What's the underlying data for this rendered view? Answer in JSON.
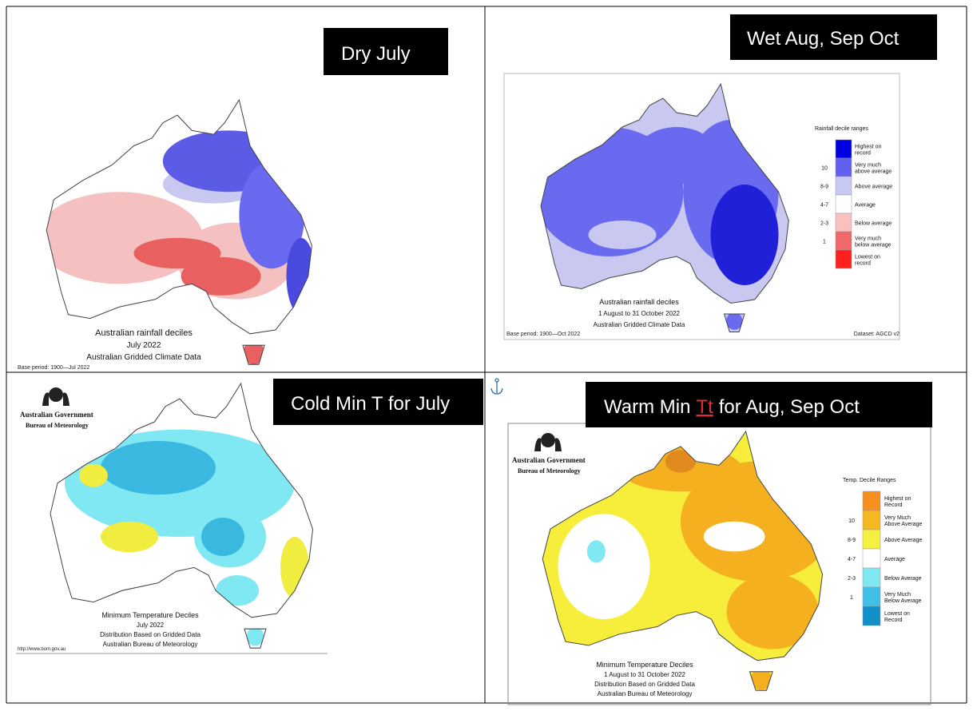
{
  "panels": [
    {
      "label": "Dry July",
      "map": {
        "caption": [
          "Australian rainfall deciles",
          "July 2022",
          "Australian Gridded Climate Data"
        ],
        "base_period": "Base period: 1900—Jul 2022"
      }
    },
    {
      "label": "Wet Aug, Sep Oct",
      "map": {
        "caption": [
          "Australian rainfall deciles",
          "1 August to 31 October 2022",
          "Australian Gridded Climate Data"
        ],
        "base_period": "Base period: 1900—Oct 2022",
        "dataset": "Dataset: AGCD v2",
        "legend": {
          "title": "Rainfall decile ranges",
          "entries": [
            {
              "lines": [
                "Highest on",
                "record"
              ],
              "color": "#0000e0"
            },
            {
              "range": "10",
              "lines": [
                "Very much",
                "above average"
              ],
              "color": "#6060f0"
            },
            {
              "range": "8-9",
              "lines": [
                "Above average"
              ],
              "color": "#c8c8f4"
            },
            {
              "range": "4-7",
              "lines": [
                "Average"
              ],
              "color": "#ffffff"
            },
            {
              "range": "2-3",
              "lines": [
                "Below average"
              ],
              "color": "#f8c0c0"
            },
            {
              "range": "1",
              "lines": [
                "Very much",
                "below average"
              ],
              "color": "#f06868"
            },
            {
              "lines": [
                "Lowest on",
                "record"
              ],
              "color": "#ff2020"
            }
          ]
        }
      }
    },
    {
      "label": "Cold Min T for July",
      "map": {
        "logo": [
          "Australian Government",
          "Bureau of Meteorology"
        ],
        "caption": [
          "Minimum Temperature Deciles",
          "July 2022",
          "Distribution Based on Gridded Data",
          "Australian Bureau of Meteorology"
        ],
        "url": "http://www.bom.gov.au"
      }
    },
    {
      "label_parts": [
        "Warm Min",
        "Tt",
        "for Aug, Sep Oct"
      ],
      "map": {
        "logo": [
          "Australian Government",
          "Bureau of Meteorology"
        ],
        "caption": [
          "Minimum Temperature Deciles",
          "1 August to 31 October 2022",
          "Distribution Based on Gridded Data",
          "Australian Bureau of Meteorology"
        ],
        "legend": {
          "title": "Temp. Decile Ranges",
          "entries": [
            {
              "lines": [
                "Highest on",
                "Record"
              ],
              "color": "#f59020"
            },
            {
              "range": "10",
              "lines": [
                "Very Much",
                "Above Average"
              ],
              "color": "#f5b820"
            },
            {
              "range": "8-9",
              "lines": [
                "Above Average"
              ],
              "color": "#f5f040"
            },
            {
              "range": "4-7",
              "lines": [
                "Average"
              ],
              "color": "#ffffff"
            },
            {
              "range": "2-3",
              "lines": [
                "Below Average"
              ],
              "color": "#80e8f0"
            },
            {
              "range": "1",
              "lines": [
                "Very Much",
                "Below Average"
              ],
              "color": "#40c0e8"
            },
            {
              "lines": [
                "Lowest on",
                "Record"
              ],
              "color": "#1090c8"
            }
          ]
        }
      }
    }
  ]
}
